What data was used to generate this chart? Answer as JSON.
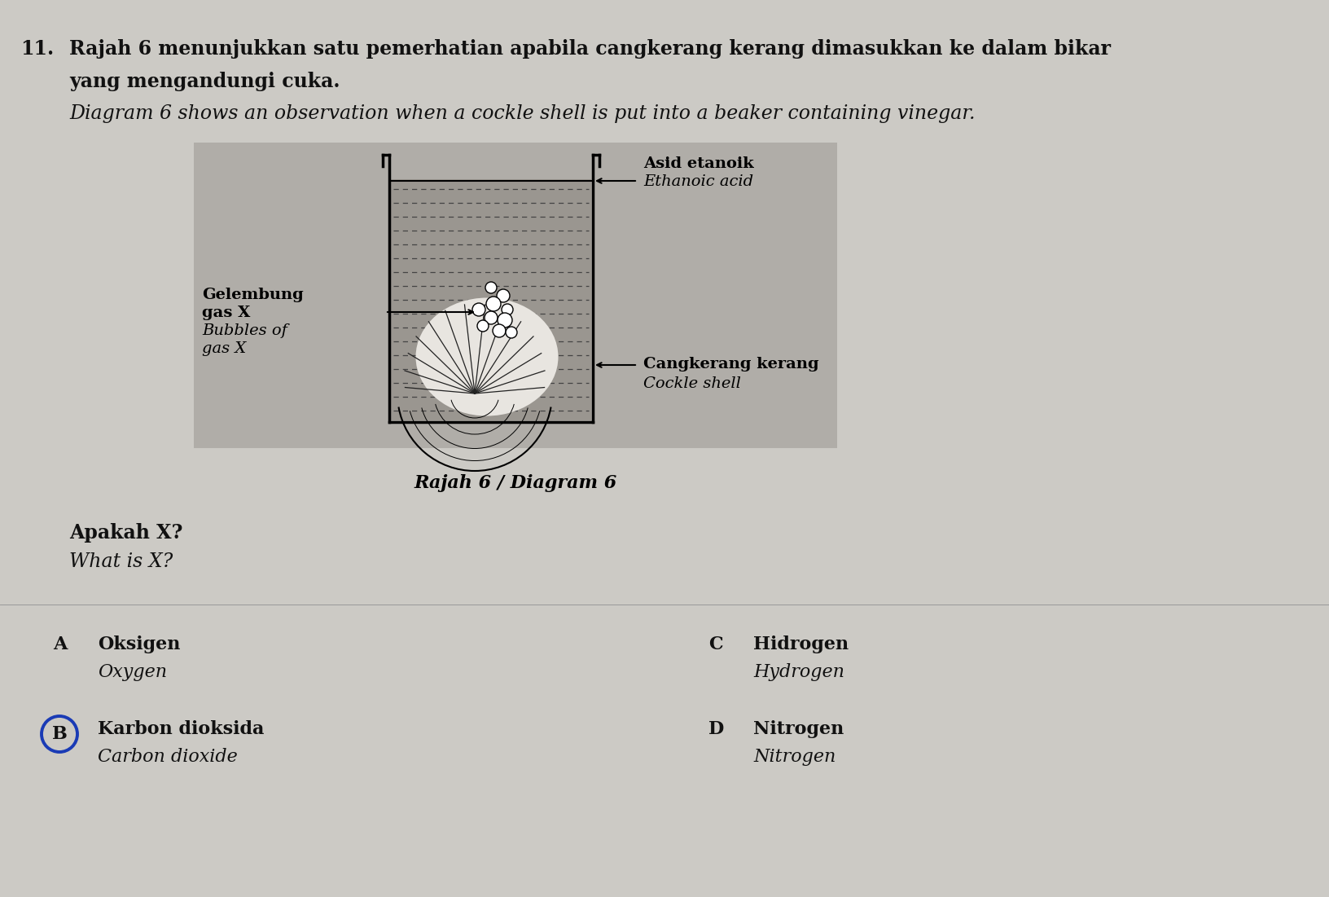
{
  "bg_color": "#d8d5d0",
  "question_number": "11.",
  "q_malay1": "Rajah 6 menunjukkan satu pemerhatian apabila cangkerang kerang dimasukkan ke dalam bikar",
  "q_malay2": "yang mengandungi cuka.",
  "q_english": "Diagram 6 shows an observation when a cockle shell is put into a beaker containing vinegar.",
  "diagram_label": "Rajah 6 / Diagram 6",
  "lbl_bubble_1": "Gelembung",
  "lbl_bubble_2": "gas X",
  "lbl_bubble_3": "Bubbles of",
  "lbl_bubble_4": "gas X",
  "lbl_acid_1": "Asid etanoik",
  "lbl_acid_2": "Ethanoic acid",
  "lbl_shell_1": "Cangkerang kerang",
  "lbl_shell_2": "Cockle shell",
  "q_apakah": "Apakah X?",
  "q_what": "What is X?",
  "opt_A_bold": "Oksigen",
  "opt_A_ital": "Oxygen",
  "opt_B_bold": "Karbon dioksida",
  "opt_B_ital": "Carbon dioxide",
  "opt_C_bold": "Hidrogen",
  "opt_C_ital": "Hydrogen",
  "opt_D_bold": "Nitrogen",
  "opt_D_ital": "Nitrogen",
  "diag_bg": "#b8b4ae",
  "liquid_bg": "#a8a49e",
  "text_color": "#111111"
}
